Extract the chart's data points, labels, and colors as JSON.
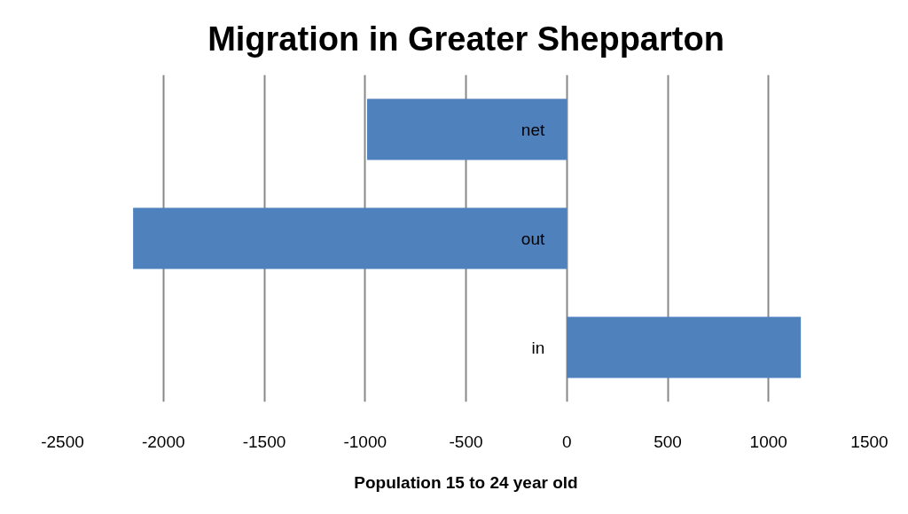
{
  "chart_data": {
    "type": "bar",
    "orientation": "horizontal",
    "title": "Migration in Greater Shepparton",
    "xlabel": "Population 15 to 24 year old",
    "categories": [
      "net",
      "out",
      "in"
    ],
    "values": [
      -990,
      -2150,
      1160
    ],
    "color": "#4f81bd",
    "xlim": [
      -2500,
      1500
    ],
    "xticks": [
      -2500,
      -2000,
      -1500,
      -1000,
      -500,
      0,
      500,
      1000,
      1500
    ],
    "grid": "x"
  }
}
